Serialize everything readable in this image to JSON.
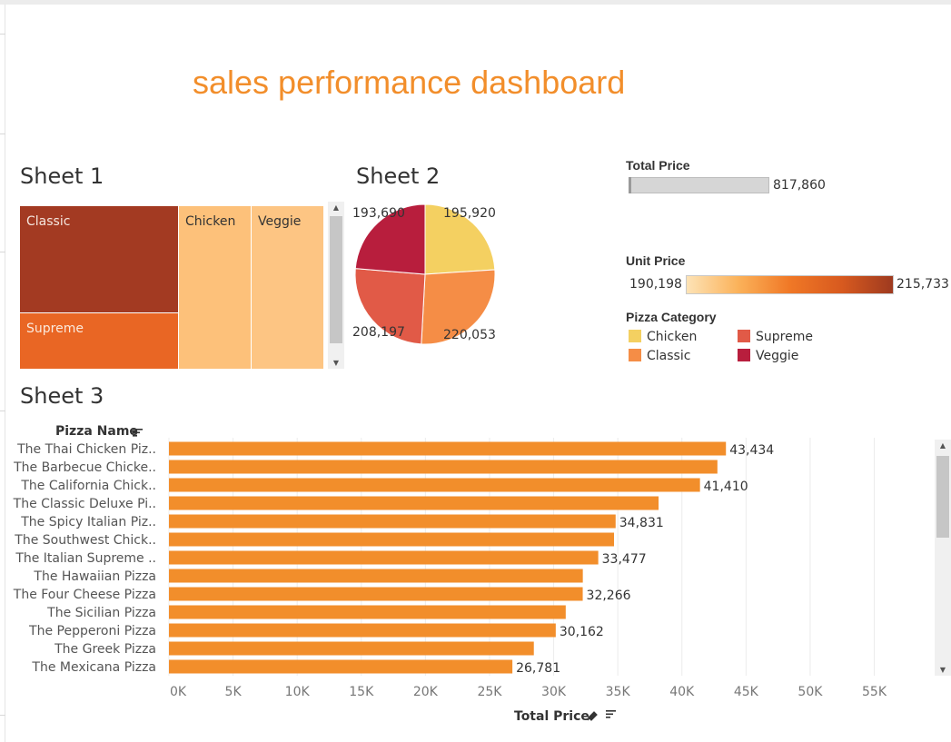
{
  "dashboard": {
    "title": "sales performance dashboard"
  },
  "sheet1": {
    "title": "Sheet 1",
    "cells": [
      {
        "label": "Classic",
        "color": "#a33a22",
        "text_color": "#f5e6de"
      },
      {
        "label": "Supreme",
        "color": "#e96624",
        "text_color": "#fbe9dc"
      },
      {
        "label": "Chicken",
        "color": "#fdc17a",
        "text_color": "#333333"
      },
      {
        "label": "Veggie",
        "color": "#fdc583",
        "text_color": "#333333"
      }
    ]
  },
  "sheet2": {
    "title": "Sheet 2"
  },
  "legends": {
    "total_price": {
      "title": "Total Price",
      "value": "817,860"
    },
    "unit_price": {
      "title": "Unit Price",
      "min": "190,198",
      "max": "215,733"
    },
    "pizza_category": {
      "title": "Pizza Category",
      "items": [
        {
          "label": "Chicken",
          "color": "#f4d061"
        },
        {
          "label": "Supreme",
          "color": "#e15a47"
        },
        {
          "label": "Classic",
          "color": "#f58d46"
        },
        {
          "label": "Veggie",
          "color": "#b81e3d"
        }
      ]
    }
  },
  "sheet3": {
    "title": "Sheet 3",
    "row_header": "Pizza Name",
    "x_axis_title": "Total Price"
  },
  "chart_data": [
    {
      "type": "pie",
      "labels": [
        "Chicken",
        "Classic",
        "Supreme",
        "Veggie"
      ],
      "values": [
        195920,
        220053,
        208197,
        193690
      ],
      "value_labels": [
        "195,920",
        "220,053",
        "208,197",
        "193,690"
      ],
      "colors": [
        "#f4d061",
        "#f58d46",
        "#e15a47",
        "#b81e3d"
      ]
    },
    {
      "type": "bar",
      "orientation": "horizontal",
      "categories": [
        "The Thai Chicken Piz..",
        "The Barbecue Chicke..",
        "The California Chick..",
        "The Classic Deluxe Pi..",
        "The Spicy Italian Piz..",
        "The Southwest Chick..",
        "The Italian Supreme ..",
        "The Hawaiian Pizza",
        "The Four Cheese Pizza",
        "The Sicilian Pizza",
        "The Pepperoni Pizza",
        "The Greek Pizza",
        "The Mexicana Pizza"
      ],
      "values": [
        43434,
        42768,
        41410,
        38181,
        34831,
        34706,
        33477,
        32273,
        32266,
        30940,
        30162,
        28454,
        26781
      ],
      "data_labels": [
        "43,434",
        "",
        "41,410",
        "",
        "34,831",
        "",
        "33,477",
        "",
        "32,266",
        "",
        "30,162",
        "",
        "26,781"
      ],
      "color": "#f28e2b",
      "xlabel": "Total Price",
      "ylabel": "Pizza Name",
      "xlim": [
        0,
        59000
      ],
      "xticks": [
        0,
        5000,
        10000,
        15000,
        20000,
        25000,
        30000,
        35000,
        40000,
        45000,
        50000,
        55000
      ],
      "xtick_labels": [
        "0K",
        "5K",
        "10K",
        "15K",
        "20K",
        "25K",
        "30K",
        "35K",
        "40K",
        "45K",
        "50K",
        "55K"
      ],
      "grid": true
    }
  ]
}
